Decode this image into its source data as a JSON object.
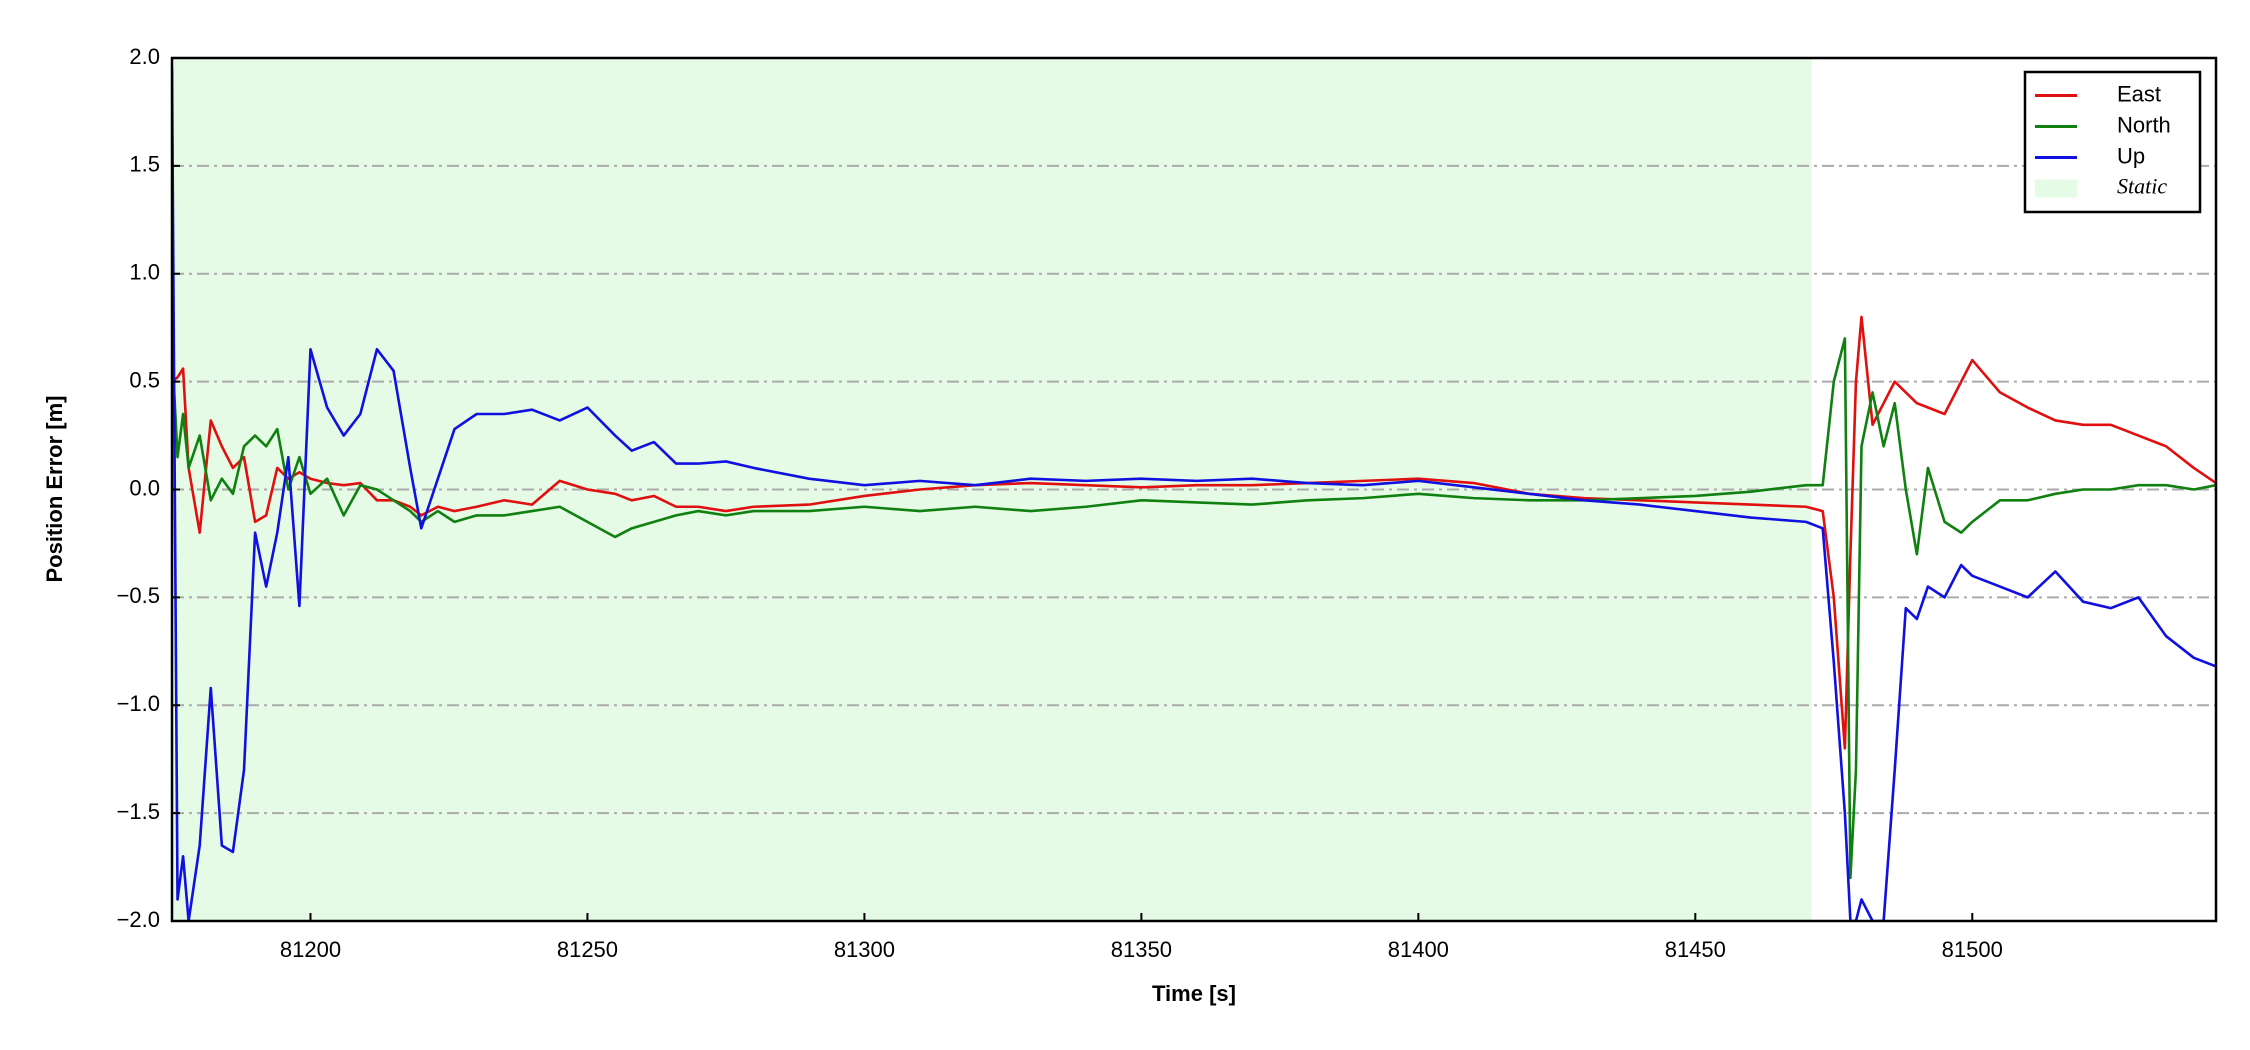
{
  "chart_data": {
    "type": "line",
    "x_label": "Time [s]",
    "y_label": "Position Error [m]",
    "x": [
      81175,
      81176,
      81177,
      81178,
      81180,
      81182,
      81184,
      81186,
      81188,
      81190,
      81192,
      81194,
      81196,
      81198,
      81200,
      81203,
      81206,
      81209,
      81212,
      81215,
      81218,
      81220,
      81223,
      81226,
      81230,
      81235,
      81240,
      81245,
      81250,
      81255,
      81258,
      81262,
      81266,
      81270,
      81275,
      81280,
      81290,
      81300,
      81310,
      81320,
      81330,
      81340,
      81350,
      81360,
      81370,
      81380,
      81390,
      81400,
      81410,
      81420,
      81430,
      81440,
      81450,
      81460,
      81470,
      81473,
      81475,
      81477,
      81478,
      81479,
      81480,
      81482,
      81484,
      81486,
      81488,
      81490,
      81492,
      81495,
      81498,
      81500,
      81505,
      81510,
      81515,
      81520,
      81525,
      81530,
      81535,
      81540,
      81544
    ],
    "series": [
      {
        "name": "East",
        "color": "#e01010",
        "values": [
          0.5,
          0.52,
          0.56,
          0.1,
          -0.2,
          0.32,
          0.2,
          0.1,
          0.15,
          -0.15,
          -0.12,
          0.1,
          0.05,
          0.08,
          0.05,
          0.03,
          0.02,
          0.03,
          -0.05,
          -0.05,
          -0.08,
          -0.12,
          -0.08,
          -0.1,
          -0.08,
          -0.05,
          -0.07,
          0.04,
          0.0,
          -0.02,
          -0.05,
          -0.03,
          -0.08,
          -0.08,
          -0.1,
          -0.08,
          -0.07,
          -0.03,
          0.0,
          0.02,
          0.03,
          0.02,
          0.01,
          0.02,
          0.02,
          0.03,
          0.04,
          0.05,
          0.03,
          -0.02,
          -0.04,
          -0.05,
          -0.06,
          -0.07,
          -0.08,
          -0.1,
          -0.5,
          -1.2,
          -0.3,
          0.5,
          0.8,
          0.3,
          0.4,
          0.5,
          0.45,
          0.4,
          0.38,
          0.35,
          0.5,
          0.6,
          0.45,
          0.38,
          0.32,
          0.3,
          0.3,
          0.25,
          0.2,
          0.1,
          0.03
        ]
      },
      {
        "name": "North",
        "color": "#108010",
        "values": [
          0.65,
          0.15,
          0.35,
          0.1,
          0.25,
          -0.05,
          0.05,
          -0.02,
          0.2,
          0.25,
          0.2,
          0.28,
          0.0,
          0.15,
          -0.02,
          0.05,
          -0.12,
          0.02,
          0.0,
          -0.05,
          -0.1,
          -0.15,
          -0.1,
          -0.15,
          -0.12,
          -0.12,
          -0.1,
          -0.08,
          -0.15,
          -0.22,
          -0.18,
          -0.15,
          -0.12,
          -0.1,
          -0.12,
          -0.1,
          -0.1,
          -0.08,
          -0.1,
          -0.08,
          -0.1,
          -0.08,
          -0.05,
          -0.06,
          -0.07,
          -0.05,
          -0.04,
          -0.02,
          -0.04,
          -0.05,
          -0.05,
          -0.04,
          -0.03,
          -0.01,
          0.02,
          0.02,
          0.5,
          0.7,
          -1.8,
          -1.3,
          0.2,
          0.45,
          0.2,
          0.4,
          0.0,
          -0.3,
          0.1,
          -0.15,
          -0.2,
          -0.15,
          -0.05,
          -0.05,
          -0.02,
          0.0,
          0.0,
          0.02,
          0.02,
          0.0,
          0.02
        ]
      },
      {
        "name": "Up",
        "color": "#1010e0",
        "values": [
          1.95,
          -1.9,
          -1.7,
          -2.0,
          -1.65,
          -0.92,
          -1.65,
          -1.68,
          -1.3,
          -0.2,
          -0.45,
          -0.2,
          0.15,
          -0.54,
          0.65,
          0.38,
          0.25,
          0.35,
          0.65,
          0.55,
          0.1,
          -0.18,
          0.05,
          0.28,
          0.35,
          0.35,
          0.37,
          0.32,
          0.38,
          0.25,
          0.18,
          0.22,
          0.12,
          0.12,
          0.13,
          0.1,
          0.05,
          0.02,
          0.04,
          0.02,
          0.05,
          0.04,
          0.05,
          0.04,
          0.05,
          0.03,
          0.02,
          0.04,
          0.01,
          -0.02,
          -0.05,
          -0.07,
          -0.1,
          -0.13,
          -0.15,
          -0.18,
          -0.8,
          -1.5,
          -2.0,
          -2.0,
          -1.9,
          -2.0,
          -2.0,
          -1.3,
          -0.55,
          -0.6,
          -0.45,
          -0.5,
          -0.35,
          -0.4,
          -0.45,
          -0.5,
          -0.38,
          -0.52,
          -0.55,
          -0.5,
          -0.68,
          -0.78,
          -0.82
        ]
      }
    ],
    "spans": [
      {
        "name": "Static",
        "color": "#e6fbe6",
        "x": [
          81175,
          81471
        ]
      }
    ],
    "xlim": [
      81175,
      81544
    ],
    "xticks": [
      81200,
      81250,
      81300,
      81350,
      81400,
      81450,
      81500
    ],
    "ylim": [
      -2.0,
      2.0
    ],
    "yticks": [
      {
        "value": -2.0,
        "label": "−2.0"
      },
      {
        "value": -1.5,
        "label": "−1.5"
      },
      {
        "value": -1.0,
        "label": "−1.0"
      },
      {
        "value": -0.5,
        "label": "−0.5"
      },
      {
        "value": 0,
        "label": "0.0"
      },
      0.5,
      {
        "value": 1,
        "label": "1.0"
      },
      1.5,
      {
        "value": 2,
        "label": "2.0"
      }
    ],
    "grid": true,
    "legend": "upper right"
  }
}
